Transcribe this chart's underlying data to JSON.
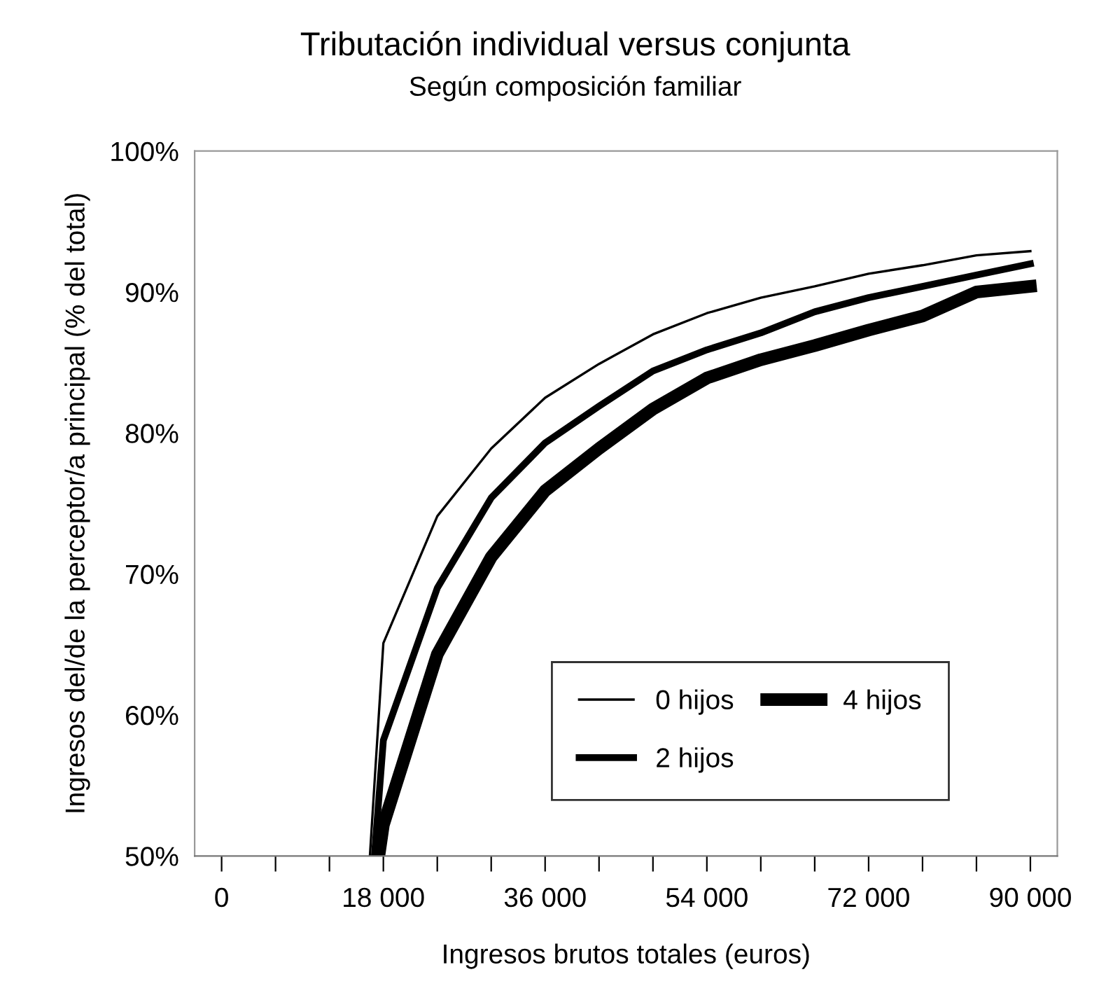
{
  "chart_data": {
    "type": "line",
    "title": "Tributación individual versus conjunta",
    "subtitle": "Según composición familiar",
    "xlabel": "Ingresos brutos totales (euros)",
    "ylabel": "Ingresos del/de la perceptor/a principal (% del total)",
    "xlim": [
      -3000,
      93000
    ],
    "ylim": [
      50,
      100
    ],
    "xticks": [
      {
        "value": 0,
        "label": "0"
      },
      {
        "value": 6000,
        "label": null
      },
      {
        "value": 12000,
        "label": null
      },
      {
        "value": 18000,
        "label": "18 000"
      },
      {
        "value": 24000,
        "label": null
      },
      {
        "value": 30000,
        "label": null
      },
      {
        "value": 36000,
        "label": "36 000"
      },
      {
        "value": 42000,
        "label": null
      },
      {
        "value": 48000,
        "label": null
      },
      {
        "value": 54000,
        "label": "54 000"
      },
      {
        "value": 60000,
        "label": null
      },
      {
        "value": 66000,
        "label": null
      },
      {
        "value": 72000,
        "label": "72 000"
      },
      {
        "value": 78000,
        "label": null
      },
      {
        "value": 84000,
        "label": null
      },
      {
        "value": 90000,
        "label": "90 000"
      }
    ],
    "yticks": [
      {
        "value": 50,
        "label": "50%"
      },
      {
        "value": 60,
        "label": "60%"
      },
      {
        "value": 70,
        "label": "70%"
      },
      {
        "value": 80,
        "label": "80%"
      },
      {
        "value": 90,
        "label": "90%"
      },
      {
        "value": 100,
        "label": "100%"
      }
    ],
    "grid": false,
    "legend": "lower right",
    "marker": "none",
    "line_style": "solid",
    "series": [
      {
        "name": "0 hijos",
        "color": "#000000",
        "x": [
          16500,
          18000,
          24000,
          30000,
          36000,
          42000,
          48000,
          54000,
          60000,
          66000,
          72000,
          78000,
          84000,
          90000
        ],
        "values": [
          50,
          65.1,
          74.1,
          78.9,
          82.5,
          84.9,
          87.0,
          88.5,
          89.6,
          90.4,
          91.3,
          91.9,
          92.6,
          92.9
        ]
      },
      {
        "name": "2 hijos",
        "color": "#000000",
        "x": [
          17000,
          18000,
          24000,
          30000,
          36000,
          42000,
          48000,
          54000,
          60000,
          66000,
          72000,
          78000,
          84000,
          90000
        ],
        "values": [
          50,
          58.2,
          69.0,
          75.4,
          79.3,
          81.9,
          84.4,
          85.9,
          87.1,
          88.6,
          89.6,
          90.4,
          91.2,
          92.0
        ]
      },
      {
        "name": "4 hijos",
        "color": "#000000",
        "x": [
          17500,
          18000,
          24000,
          30000,
          36000,
          42000,
          48000,
          54000,
          60000,
          66000,
          72000,
          78000,
          84000,
          90000
        ],
        "values": [
          50,
          52.2,
          64.3,
          71.2,
          75.9,
          78.9,
          81.7,
          83.9,
          85.2,
          86.2,
          87.3,
          88.3,
          90.0,
          90.4
        ]
      }
    ]
  }
}
